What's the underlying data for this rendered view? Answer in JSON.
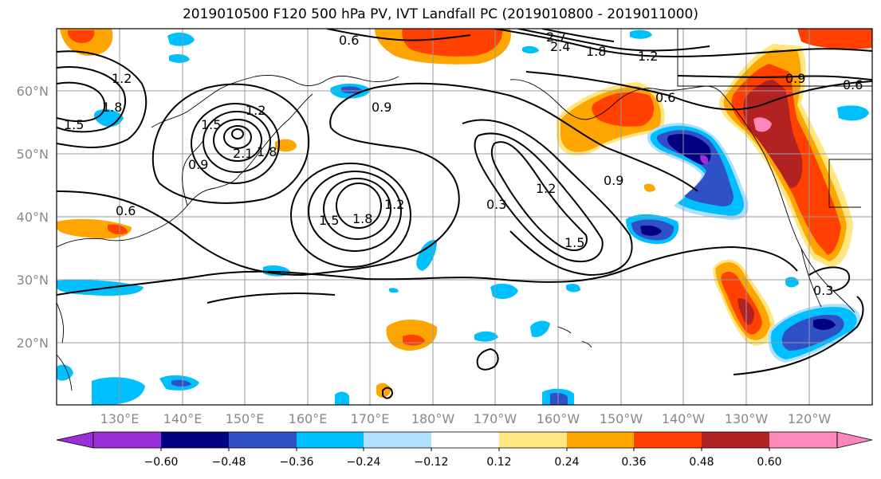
{
  "title": "2019010500 F120 500 hPa PV, IVT Landfall PC (2019010800 - 2019011000)",
  "map": {
    "lat_labels": [
      "20°N",
      "30°N",
      "40°N",
      "50°N",
      "60°N"
    ],
    "lon_labels": [
      "130°E",
      "140°E",
      "150°E",
      "160°E",
      "170°E",
      "180°W",
      "170°W",
      "160°W",
      "150°W",
      "140°W",
      "130°W",
      "120°W"
    ]
  },
  "contour_labels": [
    {
      "text": "0.6"
    },
    {
      "text": "2.7"
    },
    {
      "text": "2.4"
    },
    {
      "text": "1.8"
    },
    {
      "text": "1.2"
    },
    {
      "text": "0.9"
    },
    {
      "text": "0.6"
    },
    {
      "text": "1.2"
    },
    {
      "text": "1.8"
    },
    {
      "text": "1.5"
    },
    {
      "text": "1.2"
    },
    {
      "text": "1.5"
    },
    {
      "text": "2.1"
    },
    {
      "text": "1.8"
    },
    {
      "text": "0.9"
    },
    {
      "text": "0.9"
    },
    {
      "text": "0.6"
    },
    {
      "text": "0.6"
    },
    {
      "text": "1.5"
    },
    {
      "text": "1.8"
    },
    {
      "text": "1.2"
    },
    {
      "text": "0.3"
    },
    {
      "text": "1.2"
    },
    {
      "text": "0.9"
    },
    {
      "text": "1.5"
    },
    {
      "text": "0.3"
    }
  ],
  "colorbar": {
    "ticks": [
      "−0.60",
      "−0.48",
      "−0.36",
      "−0.24",
      "−0.12",
      "0.12",
      "0.24",
      "0.36",
      "0.48",
      "0.60"
    ],
    "colors": [
      "#9b30d9",
      "#000080",
      "#3050c8",
      "#00bfff",
      "#b0e0ff",
      "#ffffff",
      "#ffe680",
      "#ffa500",
      "#ff4000",
      "#b22222",
      "#ff88bb"
    ]
  }
}
